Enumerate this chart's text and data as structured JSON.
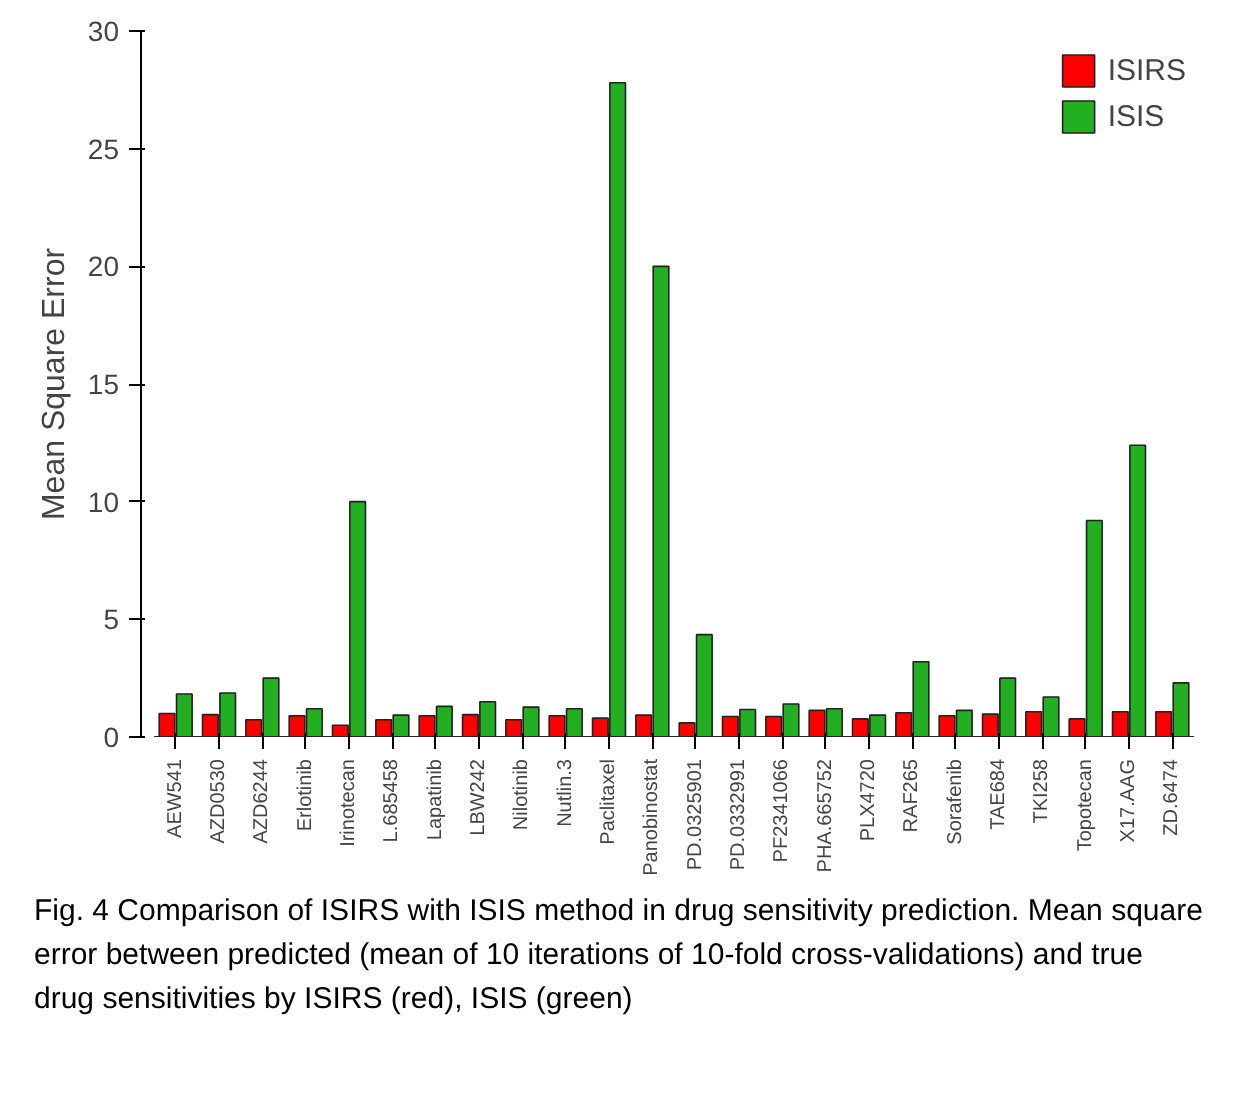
{
  "chart_data": {
    "type": "bar",
    "ylabel": "Mean Square Error",
    "categories": [
      "AEW541",
      "AZD0530",
      "AZD6244",
      "Erlotinib",
      "Irinotecan",
      "L.685458",
      "Lapatinib",
      "LBW242",
      "Nilotinib",
      "Nutlin.3",
      "Paclitaxel",
      "Panobinostat",
      "PD.0325901",
      "PD.0332991",
      "PF2341066",
      "PHA.665752",
      "PLX4720",
      "RAF265",
      "Sorafenib",
      "TAE684",
      "TKI258",
      "Topotecan",
      "X17.AAG",
      "ZD.6474"
    ],
    "series": [
      {
        "name": "ISIRS",
        "color": "#ff0000",
        "values": [
          1.0,
          0.95,
          0.73,
          0.9,
          0.5,
          0.73,
          0.9,
          0.95,
          0.73,
          0.9,
          0.8,
          0.93,
          0.6,
          0.87,
          0.87,
          1.13,
          0.77,
          1.03,
          0.9,
          0.97,
          1.07,
          0.77,
          1.07,
          1.07
        ]
      },
      {
        "name": "ISIS",
        "color": "#22b022",
        "values": [
          1.83,
          1.87,
          2.5,
          1.2,
          10.0,
          0.93,
          1.3,
          1.5,
          1.27,
          1.2,
          27.8,
          20.0,
          4.35,
          1.17,
          1.4,
          1.2,
          0.93,
          3.2,
          1.13,
          2.5,
          1.7,
          9.2,
          12.4,
          2.3
        ]
      }
    ],
    "ylim": [
      0,
      30
    ],
    "yticks": [
      0,
      5,
      10,
      15,
      20,
      25,
      30
    ],
    "grid": false,
    "legend": "top right",
    "annotations": [
      "Fig. 4 Comparison of ISIRS with ISIS method in drug sensitivity prediction. Mean square error between predicted (mean of 10 iterations of 10-fold cross-validations) and true drug sensitivities by ISIRS (red), ISIS (green)"
    ]
  }
}
